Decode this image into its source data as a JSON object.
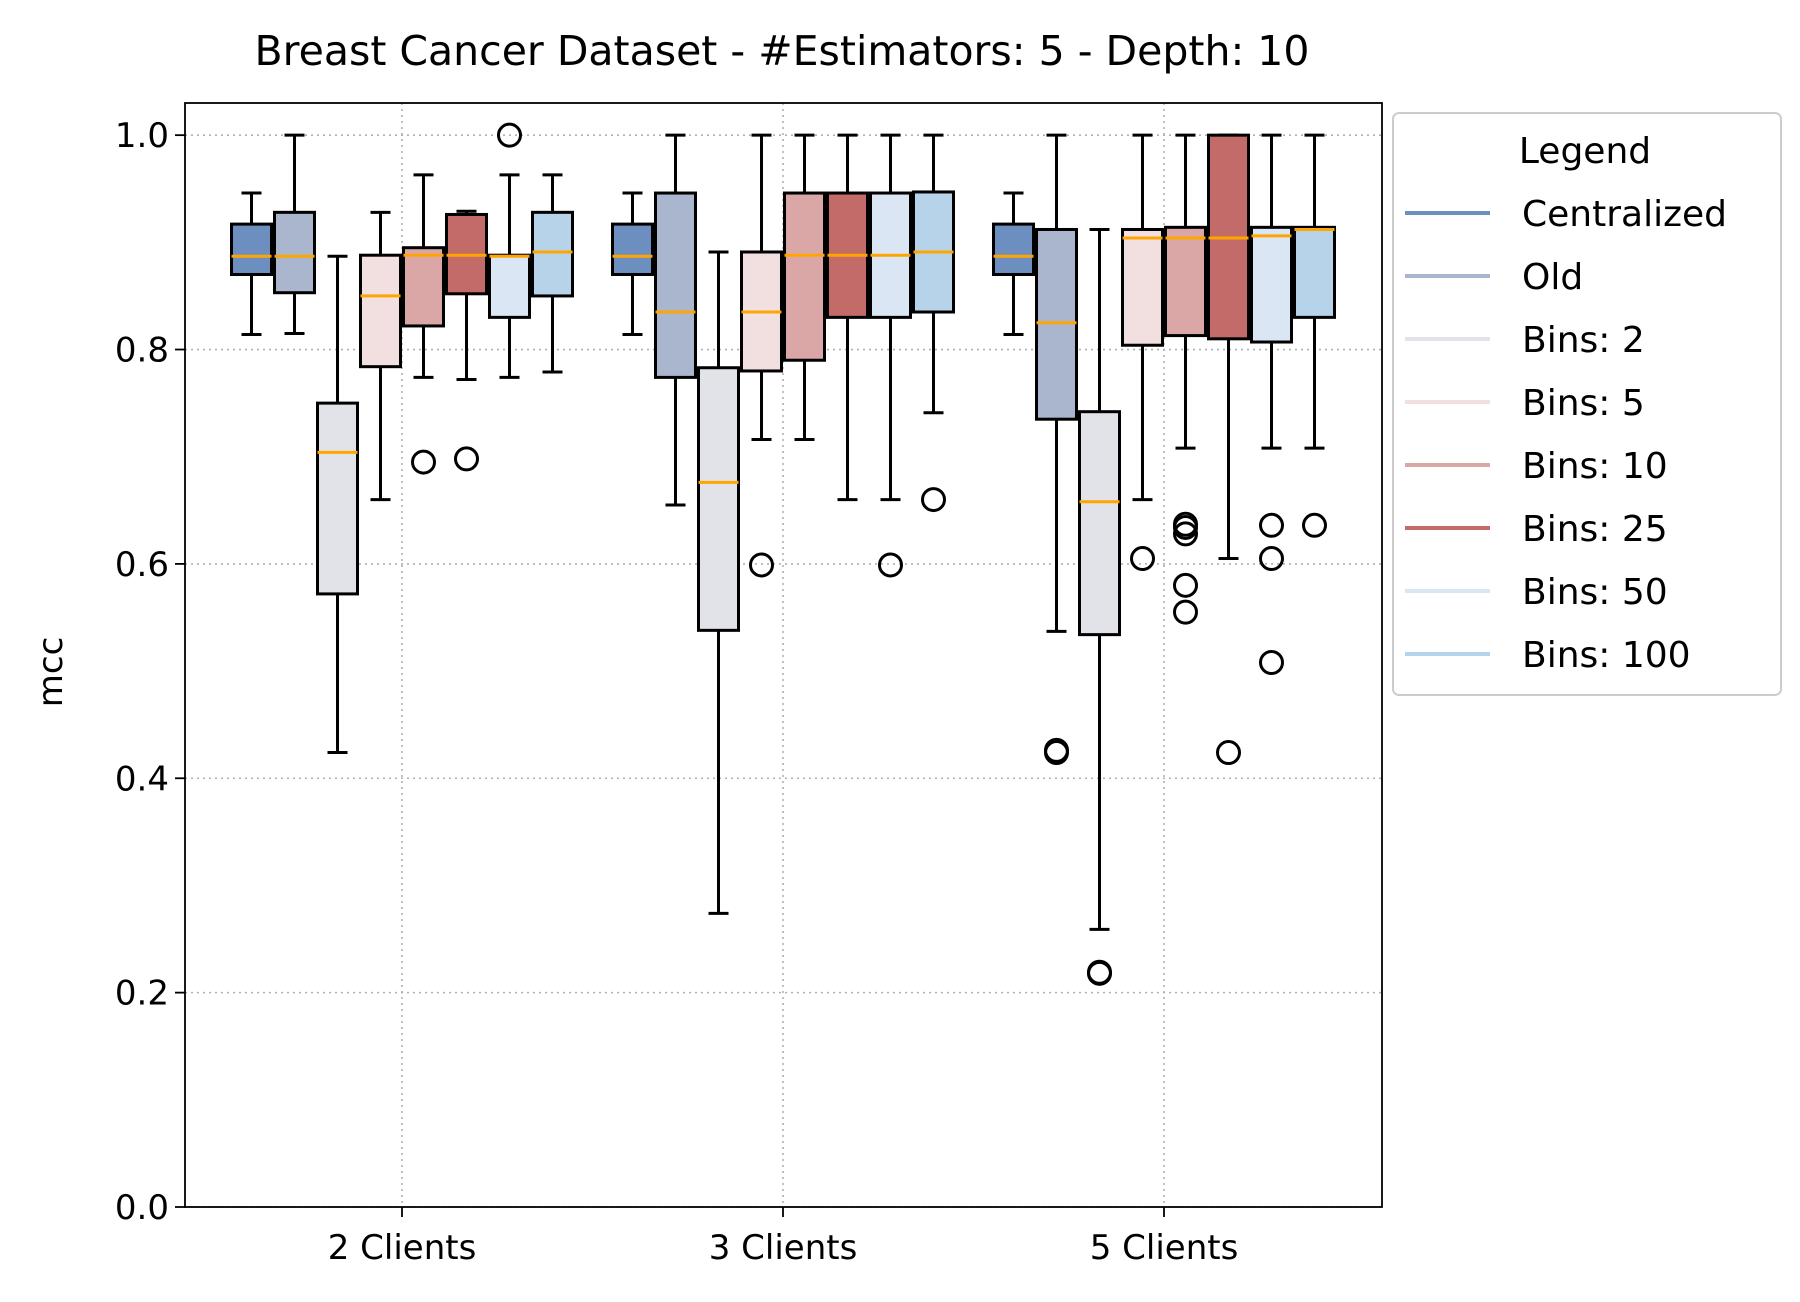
{
  "chart_data": {
    "type": "box",
    "title": "Breast Cancer Dataset - #Estimators: 5 - Depth: 10",
    "xlabel": "",
    "ylabel": "mcc",
    "ylim": [
      0.0,
      1.03
    ],
    "yticks": [
      "0.0",
      "0.2",
      "0.4",
      "0.6",
      "0.8",
      "1.0"
    ],
    "grid": true,
    "categories": [
      "2 Clients",
      "3 Clients",
      "5 Clients"
    ],
    "legend": {
      "title": "Legend",
      "placement": "outside-upper-right"
    },
    "series": [
      {
        "name": "Centralized",
        "color": "#6d8fbf",
        "boxes": [
          {
            "whislo": 0.814,
            "q1": 0.87,
            "med": 0.887,
            "q3": 0.917,
            "whishi": 0.946,
            "fliers": []
          },
          {
            "whislo": 0.814,
            "q1": 0.87,
            "med": 0.887,
            "q3": 0.917,
            "whishi": 0.946,
            "fliers": []
          },
          {
            "whislo": 0.814,
            "q1": 0.87,
            "med": 0.887,
            "q3": 0.917,
            "whishi": 0.946,
            "fliers": []
          }
        ]
      },
      {
        "name": "Old",
        "color": "#a9b6ce",
        "boxes": [
          {
            "whislo": 0.815,
            "q1": 0.853,
            "med": 0.887,
            "q3": 0.928,
            "whishi": 1.0,
            "fliers": []
          },
          {
            "whislo": 0.655,
            "q1": 0.774,
            "med": 0.835,
            "q3": 0.946,
            "whishi": 1.0,
            "fliers": []
          },
          {
            "whislo": 0.537,
            "q1": 0.735,
            "med": 0.825,
            "q3": 0.912,
            "whishi": 1.0,
            "fliers": [
              0.424,
              0.426
            ]
          }
        ]
      },
      {
        "name": "Bins: 2",
        "color": "#e2e3e9",
        "boxes": [
          {
            "whislo": 0.424,
            "q1": 0.572,
            "med": 0.704,
            "q3": 0.75,
            "whishi": 0.887,
            "fliers": []
          },
          {
            "whislo": 0.274,
            "q1": 0.538,
            "med": 0.676,
            "q3": 0.783,
            "whishi": 0.891,
            "fliers": []
          },
          {
            "whislo": 0.259,
            "q1": 0.534,
            "med": 0.658,
            "q3": 0.742,
            "whishi": 0.912,
            "fliers": [
              0.218,
              0.219
            ]
          }
        ]
      },
      {
        "name": "Bins: 5",
        "color": "#f2dfe0",
        "boxes": [
          {
            "whislo": 0.66,
            "q1": 0.784,
            "med": 0.85,
            "q3": 0.888,
            "whishi": 0.928,
            "fliers": []
          },
          {
            "whislo": 0.716,
            "q1": 0.78,
            "med": 0.835,
            "q3": 0.891,
            "whishi": 1.0,
            "fliers": [
              0.599
            ]
          },
          {
            "whislo": 0.66,
            "q1": 0.804,
            "med": 0.904,
            "q3": 0.912,
            "whishi": 1.0,
            "fliers": [
              0.605
            ]
          }
        ]
      },
      {
        "name": "Bins: 10",
        "color": "#daa7a6",
        "boxes": [
          {
            "whislo": 0.774,
            "q1": 0.822,
            "med": 0.888,
            "q3": 0.895,
            "whishi": 0.963,
            "fliers": [
              0.695
            ]
          },
          {
            "whislo": 0.716,
            "q1": 0.79,
            "med": 0.888,
            "q3": 0.946,
            "whishi": 1.0,
            "fliers": []
          },
          {
            "whislo": 0.708,
            "q1": 0.813,
            "med": 0.904,
            "q3": 0.914,
            "whishi": 1.0,
            "fliers": [
              0.555,
              0.58,
              0.628,
              0.634,
              0.637
            ]
          }
        ]
      },
      {
        "name": "Bins: 25",
        "color": "#c26b69",
        "boxes": [
          {
            "whislo": 0.772,
            "q1": 0.852,
            "med": 0.888,
            "q3": 0.926,
            "whishi": 0.929,
            "fliers": [
              0.698
            ]
          },
          {
            "whislo": 0.66,
            "q1": 0.83,
            "med": 0.888,
            "q3": 0.946,
            "whishi": 1.0,
            "fliers": []
          },
          {
            "whislo": 0.605,
            "q1": 0.81,
            "med": 0.904,
            "q3": 1.0,
            "whishi": 1.0,
            "fliers": [
              0.424
            ]
          }
        ]
      },
      {
        "name": "Bins: 50",
        "color": "#dae6f3",
        "boxes": [
          {
            "whislo": 0.774,
            "q1": 0.83,
            "med": 0.887,
            "q3": 0.888,
            "whishi": 0.963,
            "fliers": [
              1.0
            ]
          },
          {
            "whislo": 0.66,
            "q1": 0.83,
            "med": 0.888,
            "q3": 0.946,
            "whishi": 1.0,
            "fliers": [
              0.599
            ]
          },
          {
            "whislo": 0.708,
            "q1": 0.807,
            "med": 0.906,
            "q3": 0.914,
            "whishi": 1.0,
            "fliers": [
              0.508,
              0.605,
              0.636
            ]
          }
        ]
      },
      {
        "name": "Bins: 100",
        "color": "#b7d3ea",
        "boxes": [
          {
            "whislo": 0.779,
            "q1": 0.85,
            "med": 0.891,
            "q3": 0.928,
            "whishi": 0.963,
            "fliers": []
          },
          {
            "whislo": 0.741,
            "q1": 0.835,
            "med": 0.891,
            "q3": 0.947,
            "whishi": 1.0,
            "fliers": [
              0.66
            ]
          },
          {
            "whislo": 0.708,
            "q1": 0.83,
            "med": 0.912,
            "q3": 0.914,
            "whishi": 1.0,
            "fliers": [
              0.636
            ]
          }
        ]
      }
    ]
  }
}
